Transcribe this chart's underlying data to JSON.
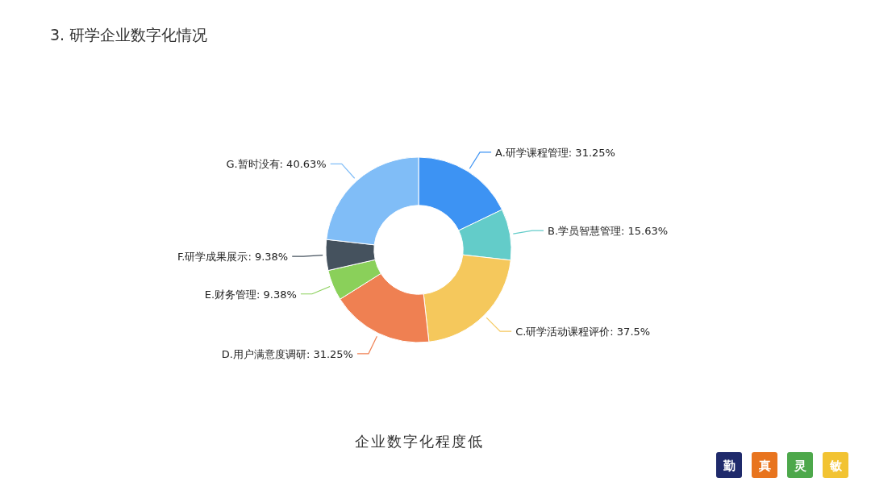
{
  "chart_data": {
    "type": "donut",
    "title": "3. 研学企业数字化情况",
    "categories": [
      "A.研学课程管理",
      "B.学员智慧管理",
      "C.研学活动课程评价",
      "D.用户满意度调研",
      "E.财务管理",
      "F.研学成果展示",
      "G.暂时没有"
    ],
    "values": [
      31.25,
      15.63,
      37.5,
      31.25,
      9.38,
      9.38,
      40.63
    ],
    "value_labels": [
      "31.25%",
      "15.63%",
      "37.5%",
      "31.25%",
      "9.38%",
      "9.38%",
      "40.63%"
    ],
    "colors": [
      "#3d93f3",
      "#63ccc9",
      "#f5c85c",
      "#ef8052",
      "#8ad05a",
      "#45525e",
      "#80bdf7"
    ],
    "annotations": [
      "企业数字化程度低",
      "勤",
      "真",
      "灵",
      "敏"
    ]
  }
}
